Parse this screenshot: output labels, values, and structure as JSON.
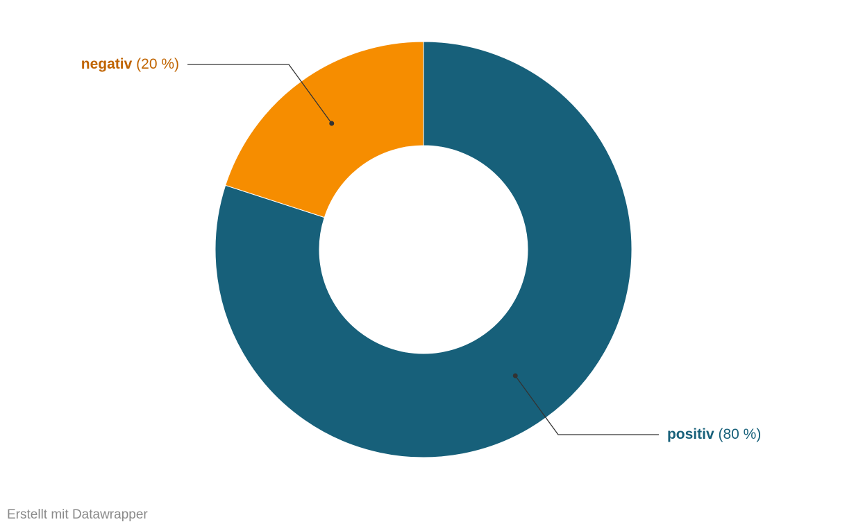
{
  "chart_data": {
    "type": "donut",
    "categories": [
      "positiv",
      "negativ"
    ],
    "values": [
      80,
      20
    ],
    "value_labels": [
      "(80 %)",
      "(20 %)"
    ],
    "colors": [
      "#17607a",
      "#f68d00"
    ],
    "label_colors": [
      "#17607a",
      "#c06400"
    ],
    "credit": "Erstellt mit Datawrapper"
  }
}
